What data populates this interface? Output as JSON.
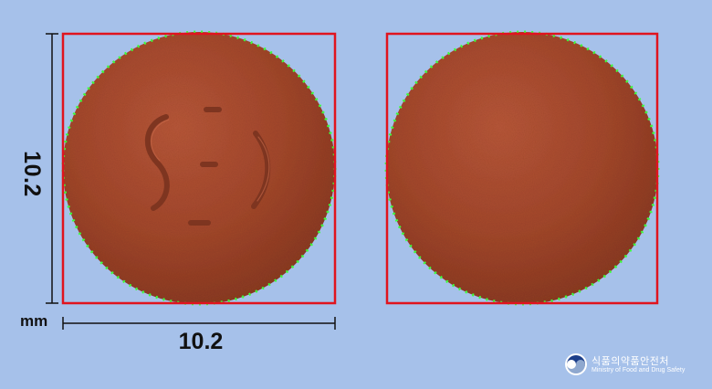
{
  "image": {
    "subject": "round reddish-brown film-coated tablet, front and back views",
    "colors": {
      "background": "#a6c1ea",
      "tablet": "#a5492d",
      "bounding_box": "#e0141e",
      "outline_points": "#33ff33",
      "dimension_line": "#111111"
    }
  },
  "dimensions": {
    "unit": "mm",
    "width_label": "10.2",
    "height_label": "10.2"
  },
  "tablet_front": {
    "imprint": "S:: ) (stylized)"
  },
  "tablet_back": {
    "imprint": ""
  },
  "logo": {
    "icon": "mfds-taegeuk-icon",
    "name_ko": "식품의약품안전처",
    "name_en": "Ministry of Food and Drug Safety"
  }
}
